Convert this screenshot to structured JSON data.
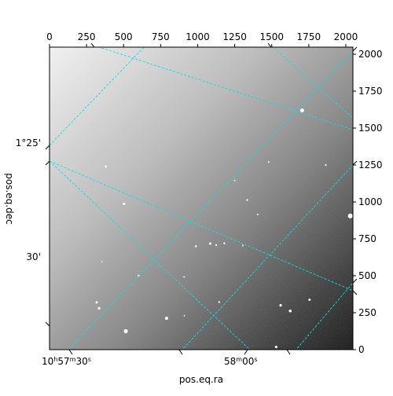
{
  "chart_data": {
    "type": "heatmap",
    "description_source": "astronomical image with WCS overlay",
    "pixel_axis": {
      "x_ticks": [
        0,
        250,
        500,
        750,
        1000,
        1250,
        1500,
        1750,
        2000
      ],
      "y_ticks": [
        0,
        250,
        500,
        750,
        1000,
        1250,
        1500,
        1750,
        2000
      ],
      "range": [
        0,
        2048
      ]
    },
    "wcs_axis": {
      "ra_label": "pos.eq.ra",
      "dec_label": "pos.eq.dec",
      "ra_ticks": [
        {
          "main": "10",
          "h": "h",
          "min": "57",
          "m": "m",
          "sec": "30",
          "s": "s"
        },
        {
          "main": "",
          "h": "",
          "min": "58",
          "m": "m",
          "sec": "00",
          "s": "s"
        }
      ],
      "dec_ticks": [
        "1°25'",
        "30'"
      ]
    },
    "colormap": "gray",
    "grid": true,
    "grid_color": "#00e5e5",
    "image_gradient": {
      "bright_corner": "upper-left",
      "dark_corner": "lower-right"
    },
    "sources": [
      {
        "x": 1705,
        "y": 1620,
        "r": 2.5
      },
      {
        "x": 2030,
        "y": 905,
        "r": 3.0
      },
      {
        "x": 503,
        "y": 987,
        "r": 1.6
      },
      {
        "x": 380,
        "y": 1240,
        "r": 1.3
      },
      {
        "x": 1335,
        "y": 1013,
        "r": 1.2
      },
      {
        "x": 1405,
        "y": 915,
        "r": 1.0
      },
      {
        "x": 1250,
        "y": 1145,
        "r": 1.0
      },
      {
        "x": 988,
        "y": 700,
        "r": 1.3
      },
      {
        "x": 1085,
        "y": 718,
        "r": 1.5
      },
      {
        "x": 1125,
        "y": 708,
        "r": 1.2
      },
      {
        "x": 1180,
        "y": 720,
        "r": 1.2
      },
      {
        "x": 1305,
        "y": 705,
        "r": 1.0
      },
      {
        "x": 600,
        "y": 500,
        "r": 1.4
      },
      {
        "x": 908,
        "y": 493,
        "r": 1.0
      },
      {
        "x": 318,
        "y": 320,
        "r": 1.5
      },
      {
        "x": 335,
        "y": 280,
        "r": 1.6
      },
      {
        "x": 515,
        "y": 125,
        "r": 2.6
      },
      {
        "x": 790,
        "y": 212,
        "r": 2.0
      },
      {
        "x": 910,
        "y": 230,
        "r": 1.0
      },
      {
        "x": 1145,
        "y": 322,
        "r": 1.2
      },
      {
        "x": 1560,
        "y": 300,
        "r": 1.6
      },
      {
        "x": 1625,
        "y": 262,
        "r": 1.8
      },
      {
        "x": 1755,
        "y": 338,
        "r": 1.4
      },
      {
        "x": 1530,
        "y": 18,
        "r": 1.6
      },
      {
        "x": 1865,
        "y": 1250,
        "r": 1.2
      },
      {
        "x": 1480,
        "y": 1270,
        "r": 1.0
      },
      {
        "x": 354,
        "y": 597,
        "r": 0.9
      }
    ]
  }
}
